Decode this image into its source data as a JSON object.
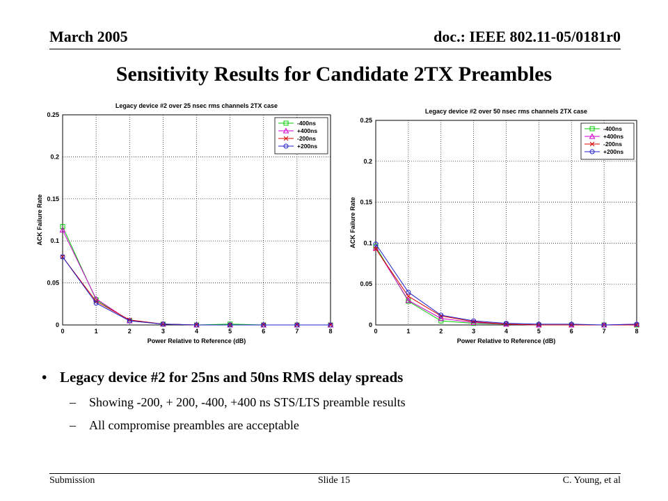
{
  "header": {
    "date": "March 2005",
    "doc": "doc.: IEEE 802.11-05/0181r0"
  },
  "slide_title": "Sensitivity Results for Candidate 2TX Preambles",
  "chart_data": [
    {
      "type": "line",
      "title": "Legacy device #2 over 25 nsec rms channels 2TX case",
      "xlabel": "Power Relative to Reference (dB)",
      "ylabel": "ACK Failure Rate",
      "xlim": [
        0,
        8
      ],
      "ylim": [
        0,
        0.25
      ],
      "xticks": [
        "0",
        "1",
        "2",
        "3",
        "4",
        "5",
        "6",
        "7",
        "8"
      ],
      "yticks": [
        "0",
        "0.05",
        "0.1",
        "0.15",
        "0.2",
        "0.25"
      ],
      "grid": true,
      "legend_position": "top-right",
      "x": [
        0,
        1,
        2,
        3,
        4,
        5,
        6,
        7,
        8
      ],
      "series": [
        {
          "name": "-400ns",
          "color": "#00cc00",
          "marker": "square",
          "values": [
            0.117,
            0.03,
            0.005,
            0.001,
            0.0,
            0.001,
            0.0,
            0.0,
            0.0
          ]
        },
        {
          "name": "+400ns",
          "color": "#cc00cc",
          "marker": "triangle",
          "values": [
            0.113,
            0.031,
            0.005,
            0.001,
            0.0,
            0.0,
            0.0,
            0.0,
            0.0
          ]
        },
        {
          "name": "-200ns",
          "color": "#dd0000",
          "marker": "x",
          "values": [
            0.081,
            0.028,
            0.006,
            0.001,
            0.0,
            0.0,
            0.0,
            0.0,
            0.0
          ]
        },
        {
          "name": "+200ns",
          "color": "#2222cc",
          "marker": "circle",
          "values": [
            0.081,
            0.026,
            0.005,
            0.001,
            0.0,
            0.0,
            0.0,
            0.0,
            0.0
          ]
        }
      ]
    },
    {
      "type": "line",
      "title": "Legacy device #2 over 50 nsec rms channels 2TX case",
      "xlabel": "Power Relative to Reference (dB)",
      "ylabel": "ACK Failure Rate",
      "xlim": [
        0,
        8
      ],
      "ylim": [
        0,
        0.25
      ],
      "xticks": [
        "0",
        "1",
        "2",
        "3",
        "4",
        "5",
        "6",
        "7",
        "8"
      ],
      "yticks": [
        "0",
        "0.05",
        "0.1",
        "0.15",
        "0.2",
        "0.25"
      ],
      "grid": true,
      "legend_position": "top-right",
      "x": [
        0,
        1,
        2,
        3,
        4,
        5,
        6,
        7,
        8
      ],
      "series": [
        {
          "name": "-400ns",
          "color": "#00cc00",
          "marker": "square",
          "values": [
            0.096,
            0.029,
            0.005,
            0.002,
            0.001,
            0.0,
            0.0,
            0.0,
            0.0
          ]
        },
        {
          "name": "+400ns",
          "color": "#cc00cc",
          "marker": "triangle",
          "values": [
            0.094,
            0.03,
            0.008,
            0.003,
            0.001,
            0.0,
            0.0,
            0.0,
            0.001
          ]
        },
        {
          "name": "-200ns",
          "color": "#dd0000",
          "marker": "x",
          "values": [
            0.093,
            0.035,
            0.011,
            0.004,
            0.001,
            0.0,
            0.0,
            0.0,
            0.0
          ]
        },
        {
          "name": "+200ns",
          "color": "#2222cc",
          "marker": "circle",
          "values": [
            0.099,
            0.04,
            0.012,
            0.005,
            0.002,
            0.001,
            0.001,
            0.0,
            0.001
          ]
        }
      ]
    }
  ],
  "bullets": {
    "main": "Legacy device #2 for 25ns and 50ns RMS delay spreads",
    "sub1": "Showing -200, + 200, -400, +400 ns STS/LTS preamble results",
    "sub2": "All compromise preambles are acceptable",
    "bullet_glyph": "•",
    "dash_glyph": "–"
  },
  "footer": {
    "left": "Submission",
    "center": "Slide 15",
    "right": "C. Young, et al"
  }
}
